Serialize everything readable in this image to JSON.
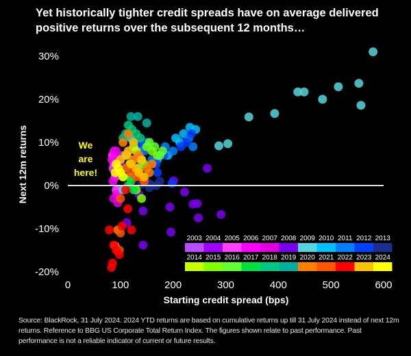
{
  "title": "Yet historically tighter credit spreads have on average delivered positive returns over the subsequent 12 months…",
  "footnote": "Source: BlackRock, 31 July 2024. 2024 YTD returns  are based on cumulative returns up till 31 July 2024 instead of next 12m returns. Reference to BBG US Corporate Total Return Index. The figures shown relate to past performance.  Past performance is not a reliable indicator of current or future results.",
  "chart_data": {
    "type": "scatter",
    "xlabel": "Starting credit spread (bps)",
    "ylabel": "Next 12m returns",
    "xlim": [
      0,
      600
    ],
    "ylim": [
      -20,
      30
    ],
    "xticks": [
      "0",
      "100",
      "200",
      "300",
      "400",
      "500",
      "600"
    ],
    "yticks": [
      "-20%",
      "-10%",
      "0%",
      "10%",
      "20%",
      "30%"
    ],
    "grid": false,
    "zero_line": true,
    "annotation": "We are here!",
    "legend_placement": "bottom-right",
    "series": [
      {
        "name": "2003",
        "color": "#b84cff",
        "points": [
          [
            105,
            7
          ],
          [
            110,
            4
          ],
          [
            118,
            2
          ],
          [
            96,
            -1
          ],
          [
            125,
            6
          ],
          [
            140,
            5
          ],
          [
            130,
            3
          ]
        ]
      },
      {
        "name": "2004",
        "color": "#a000ff",
        "points": [
          [
            115,
            8
          ],
          [
            100,
            5
          ],
          [
            135,
            7
          ]
        ]
      },
      {
        "name": "2005",
        "color": "#ff40ff",
        "points": [
          [
            85,
            7
          ],
          [
            88,
            5
          ],
          [
            90,
            2
          ],
          [
            86,
            4
          ],
          [
            92,
            -1
          ]
        ]
      },
      {
        "name": "2006",
        "color": "#ff00ff",
        "points": [
          [
            88,
            8
          ],
          [
            90,
            7
          ],
          [
            84,
            6
          ],
          [
            95,
            3
          ],
          [
            86,
            1
          ],
          [
            93,
            -2
          ]
        ]
      },
      {
        "name": "2007",
        "color": "#e000e0",
        "points": [
          [
            87,
            -3
          ],
          [
            95,
            -4
          ],
          [
            100,
            6
          ],
          [
            92,
            8
          ]
        ]
      },
      {
        "name": "2008",
        "color": "#7a00ee",
        "points": [
          [
            265,
            4
          ],
          [
            238,
            -4.3
          ],
          [
            248,
            -7.5
          ],
          [
            291,
            -6.7
          ],
          [
            201,
            1.1
          ],
          [
            194,
            -5
          ],
          [
            196,
            -10.8
          ],
          [
            143,
            -5.9
          ],
          [
            143,
            -13.8
          ],
          [
            112,
            -8.6
          ],
          [
            222,
            -1.5
          ],
          [
            135,
            -2
          ],
          [
            246,
            -4.2
          ]
        ]
      },
      {
        "name": "2009",
        "color": "#55d6dc",
        "points": [
          [
            580,
            31
          ],
          [
            437,
            21.7
          ],
          [
            449,
            21.7
          ],
          [
            484,
            20
          ],
          [
            514,
            22.9
          ],
          [
            553,
            23.7
          ],
          [
            557,
            18.6
          ],
          [
            344,
            15.9
          ],
          [
            393,
            16.7
          ],
          [
            304,
            9.7
          ],
          [
            287,
            9.2
          ],
          [
            120,
            11
          ],
          [
            105,
            -1
          ]
        ]
      },
      {
        "name": "2010",
        "color": "#00c0ff",
        "points": [
          [
            220,
            12
          ],
          [
            232,
            13.5
          ],
          [
            243,
            13
          ],
          [
            205,
            11
          ],
          [
            213,
            10
          ],
          [
            190,
            7
          ],
          [
            170,
            6
          ],
          [
            140,
            9
          ]
        ]
      },
      {
        "name": "2011",
        "color": "#0080ff",
        "points": [
          [
            230,
            11
          ],
          [
            238,
            9
          ],
          [
            200,
            8
          ],
          [
            185,
            9
          ],
          [
            160,
            6
          ],
          [
            150,
            10
          ],
          [
            145,
            8
          ]
        ]
      },
      {
        "name": "2012",
        "color": "#0040ff",
        "points": [
          [
            235,
            12
          ],
          [
            226,
            10
          ],
          [
            215,
            9
          ],
          [
            182,
            7
          ],
          [
            168,
            5
          ],
          [
            150,
            9
          ],
          [
            140,
            10
          ],
          [
            130,
            9
          ],
          [
            198,
            0.5
          ],
          [
            170,
            3
          ]
        ]
      },
      {
        "name": "2013",
        "color": "#1a2f8f",
        "points": [
          [
            140,
            0.3
          ],
          [
            158,
            0.2
          ],
          [
            168,
            0
          ],
          [
            175,
            1
          ],
          [
            155,
            -0.5
          ],
          [
            150,
            1
          ]
        ]
      },
      {
        "name": "2014",
        "color": "#c8ff00",
        "points": [
          [
            125,
            9
          ],
          [
            130,
            8
          ],
          [
            112,
            7
          ],
          [
            118,
            5
          ],
          [
            140,
            6
          ]
        ]
      },
      {
        "name": "2015",
        "color": "#80ff00",
        "points": [
          [
            150,
            9
          ],
          [
            145,
            5
          ],
          [
            160,
            8
          ],
          [
            130,
            -1
          ],
          [
            140,
            -3
          ],
          [
            170,
            7
          ]
        ]
      },
      {
        "name": "2016",
        "color": "#60ff30",
        "points": [
          [
            155,
            10
          ],
          [
            165,
            9
          ],
          [
            180,
            8
          ],
          [
            175,
            7
          ],
          [
            135,
            4
          ],
          [
            120,
            2
          ]
        ]
      },
      {
        "name": "2017",
        "color": "#00e040",
        "points": [
          [
            110,
            4
          ],
          [
            105,
            2
          ],
          [
            115,
            0
          ],
          [
            120,
            1
          ],
          [
            100,
            3
          ],
          [
            125,
            -1
          ]
        ]
      },
      {
        "name": "2018",
        "color": "#00c880",
        "points": [
          [
            115,
            14
          ],
          [
            122,
            13
          ],
          [
            130,
            12
          ],
          [
            105,
            11
          ],
          [
            138,
            11
          ]
        ]
      },
      {
        "name": "2019",
        "color": "#00b0a0",
        "points": [
          [
            120,
            16
          ],
          [
            133,
            16
          ],
          [
            150,
            14.5
          ],
          [
            110,
            12
          ],
          [
            125,
            10
          ]
        ]
      },
      {
        "name": "2020",
        "color": "#ff8000",
        "points": [
          [
            105,
            10
          ],
          [
            115,
            12
          ],
          [
            125,
            6
          ],
          [
            135,
            7
          ],
          [
            150,
            4
          ],
          [
            160,
            5
          ],
          [
            155,
            3
          ],
          [
            140,
            2
          ],
          [
            95,
            -10.3
          ],
          [
            90,
            -14
          ]
        ]
      },
      {
        "name": "2021",
        "color": "#ff5500",
        "points": [
          [
            145,
            1
          ],
          [
            130,
            2
          ],
          [
            120,
            3
          ],
          [
            110,
            4
          ],
          [
            100,
            -3
          ],
          [
            98,
            -15
          ],
          [
            100,
            -11
          ]
        ]
      },
      {
        "name": "2022",
        "color": "#ff0000",
        "points": [
          [
            83,
            -19
          ],
          [
            85,
            -18
          ],
          [
            92,
            -15
          ],
          [
            87,
            -13.8
          ],
          [
            103,
            -9.4
          ],
          [
            121,
            -10.3
          ],
          [
            114,
            -5.4
          ],
          [
            79,
            -10.3
          ],
          [
            98,
            -16
          ],
          [
            110,
            -1
          ]
        ]
      },
      {
        "name": "2023",
        "color": "#ffc000",
        "points": [
          [
            100,
            6
          ],
          [
            110,
            7
          ],
          [
            120,
            5
          ],
          [
            130,
            4
          ],
          [
            140,
            6
          ],
          [
            125,
            10
          ],
          [
            115,
            8
          ],
          [
            135,
            3
          ],
          [
            145,
            2
          ]
        ]
      },
      {
        "name": "2024",
        "color": "#ffff00",
        "points": [
          [
            92,
            5
          ],
          [
            96,
            4
          ],
          [
            100,
            3
          ],
          [
            105,
            2
          ],
          [
            90,
            3
          ]
        ]
      }
    ]
  }
}
